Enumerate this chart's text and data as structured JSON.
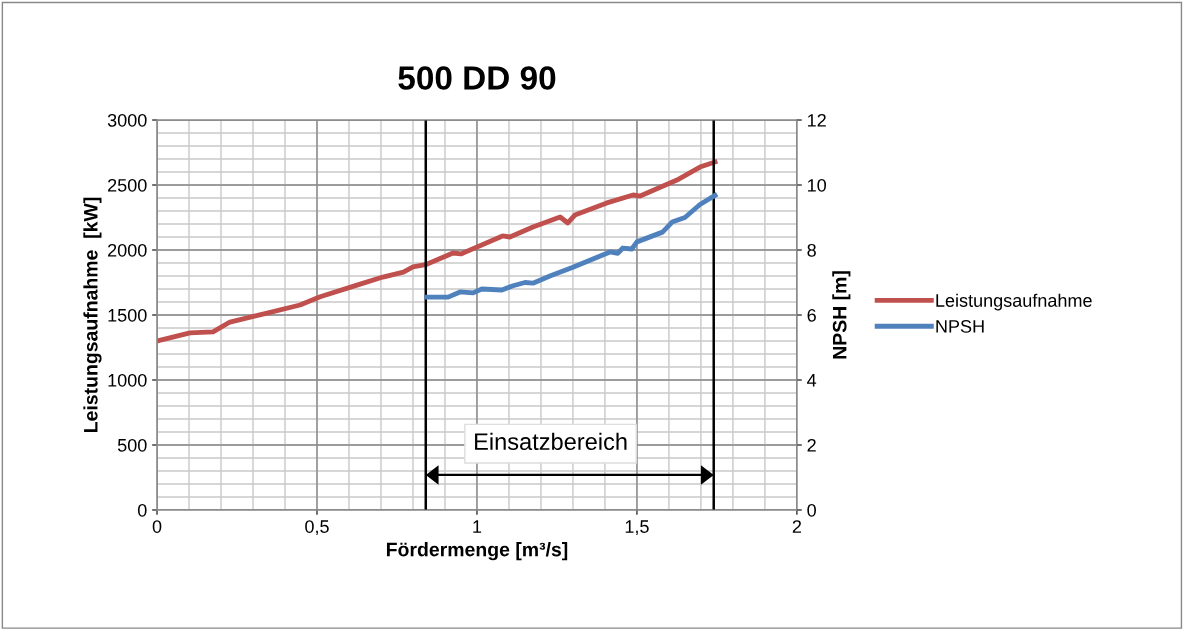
{
  "chart_data": {
    "type": "line",
    "title": "500 DD 90",
    "xlabel": "Fördermenge [m³/s]",
    "ylabel": "Leistungsaufnahme  [kW]",
    "y2label": "NPSH [m]",
    "series": [
      {
        "name": "Leistungsaufnahme",
        "color": "#c0504d",
        "x": [
          0,
          0.103,
          0.175,
          0.228,
          0.344,
          0.447,
          0.51,
          0.625,
          0.706,
          0.77,
          0.8,
          0.843,
          0.925,
          0.95,
          1.08,
          1.103,
          1.175,
          1.26,
          1.284,
          1.306,
          1.406,
          1.488,
          1.51,
          1.625,
          1.697,
          1.744
        ],
        "values": [
          1300,
          1362,
          1370,
          1446,
          1515,
          1577,
          1640,
          1730,
          1792,
          1830,
          1870,
          1890,
          1977,
          1970,
          2108,
          2100,
          2177,
          2254,
          2208,
          2269,
          2362,
          2423,
          2415,
          2538,
          2638,
          2677
        ]
      },
      {
        "name": "NPSH",
        "color": "#4f81bd",
        "axis": "y2",
        "x": [
          0.843,
          0.91,
          0.947,
          0.988,
          1.015,
          1.078,
          1.113,
          1.15,
          1.175,
          1.228,
          1.3,
          1.416,
          1.44,
          1.456,
          1.484,
          1.5,
          1.58,
          1.61,
          1.65,
          1.697,
          1.744
        ],
        "values": [
          6.55,
          6.55,
          6.71,
          6.68,
          6.8,
          6.77,
          6.9,
          7.0,
          6.98,
          7.2,
          7.47,
          7.94,
          7.9,
          8.06,
          8.03,
          8.25,
          8.55,
          8.86,
          9.0,
          9.4,
          9.68
        ]
      }
    ],
    "xlim": [
      0,
      2
    ],
    "xticks": [
      0,
      {
        "value": 0.5,
        "label": "0,5"
      },
      1,
      {
        "value": 1.5,
        "label": "1,5"
      },
      2
    ],
    "ylim": [
      0,
      3000
    ],
    "yticks": [
      0,
      500,
      1000,
      1500,
      2000,
      2500,
      3000
    ],
    "y2lim": [
      0,
      12
    ],
    "y2ticks": [
      0,
      2,
      4,
      6,
      8,
      10,
      12
    ],
    "ref_lines": [
      {
        "axis": "x",
        "value": 0.84,
        "color": "#000000"
      },
      {
        "axis": "x",
        "value": 1.74,
        "color": "#000000"
      }
    ],
    "annotations": [
      "Einsatzbereich"
    ],
    "grid": true,
    "legend": "right",
    "marker": "none",
    "line_style": "solid"
  }
}
